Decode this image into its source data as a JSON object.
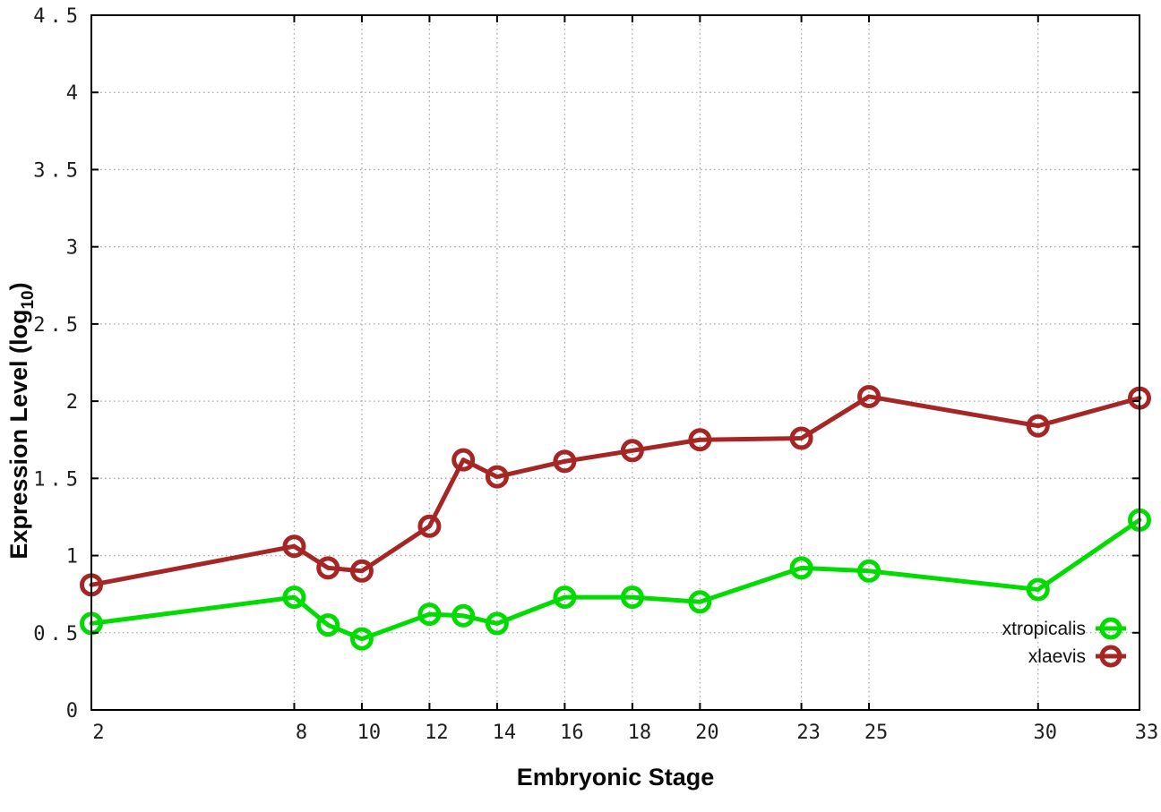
{
  "figure": {
    "xlabel": "Embryonic Stage",
    "ylabel_prefix": "Expression Level (log",
    "ylabel_sub": "10",
    "ylabel_suffix": ")"
  },
  "chart_data": {
    "type": "line",
    "title": "",
    "xlabel": "Embryonic Stage",
    "ylabel": "Expression Level (log10)",
    "x": [
      2,
      8,
      9,
      10,
      12,
      13,
      14,
      16,
      18,
      20,
      23,
      25,
      30,
      33
    ],
    "series": [
      {
        "name": "xtropicalis",
        "color": "#00dc00",
        "values": [
          0.56,
          0.73,
          0.55,
          0.46,
          0.62,
          0.61,
          0.56,
          0.73,
          0.73,
          0.7,
          0.92,
          0.9,
          0.78,
          1.23
        ]
      },
      {
        "name": "xlaevis",
        "color": "#a62626",
        "values": [
          0.81,
          1.06,
          0.92,
          0.9,
          1.19,
          1.62,
          1.51,
          1.61,
          1.68,
          1.75,
          1.76,
          2.03,
          1.84,
          2.02
        ]
      }
    ],
    "xlim": [
      2,
      33
    ],
    "ylim": [
      0,
      4.5
    ],
    "xticks": {
      "values": [
        2,
        8,
        10,
        12,
        14,
        16,
        18,
        20,
        23,
        25,
        30,
        33
      ],
      "labels": [
        "2",
        "8",
        "10",
        "12",
        "14",
        "16",
        "18",
        "20",
        "23",
        "25",
        "30",
        "33"
      ]
    },
    "yticks": {
      "values": [
        0,
        0.5,
        1,
        1.5,
        2,
        2.5,
        3,
        3.5,
        4,
        4.5
      ],
      "labels": [
        "0",
        "0.5",
        "1",
        "1.5",
        "2",
        "2.5",
        "3",
        "3.5",
        "4",
        "4.5"
      ]
    },
    "grid": true,
    "grid_color": "#ababab",
    "border_color": "#000000",
    "legend_position": "inside-bottom-right",
    "marker": "open-circle",
    "marker_radius": 10.5,
    "line_width": 5
  }
}
